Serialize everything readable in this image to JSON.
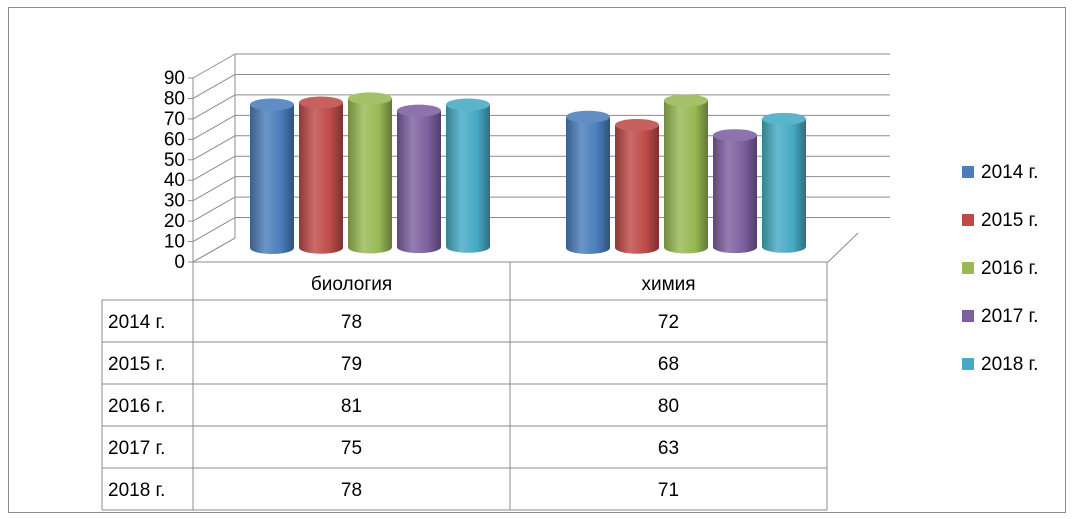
{
  "chart_data": {
    "type": "bar",
    "variant": "3d-cylinder-clustered",
    "categories": [
      "биология",
      "химия"
    ],
    "series": [
      {
        "name": "2014 г.",
        "values": [
          78,
          72
        ],
        "color": "#4a7ebb"
      },
      {
        "name": "2015 г.",
        "values": [
          79,
          68
        ],
        "color": "#be4b48"
      },
      {
        "name": "2016 г.",
        "values": [
          81,
          80
        ],
        "color": "#98b954"
      },
      {
        "name": "2017 г.",
        "values": [
          75,
          63
        ],
        "color": "#7d60a0"
      },
      {
        "name": "2018 г.",
        "values": [
          78,
          71
        ],
        "color": "#46aac5"
      }
    ],
    "ylim": [
      0,
      90
    ],
    "yticks": [
      "0",
      "10",
      "20",
      "30",
      "40",
      "50",
      "60",
      "70",
      "80",
      "90"
    ],
    "grid": true,
    "legend": "right",
    "data_table": true
  }
}
